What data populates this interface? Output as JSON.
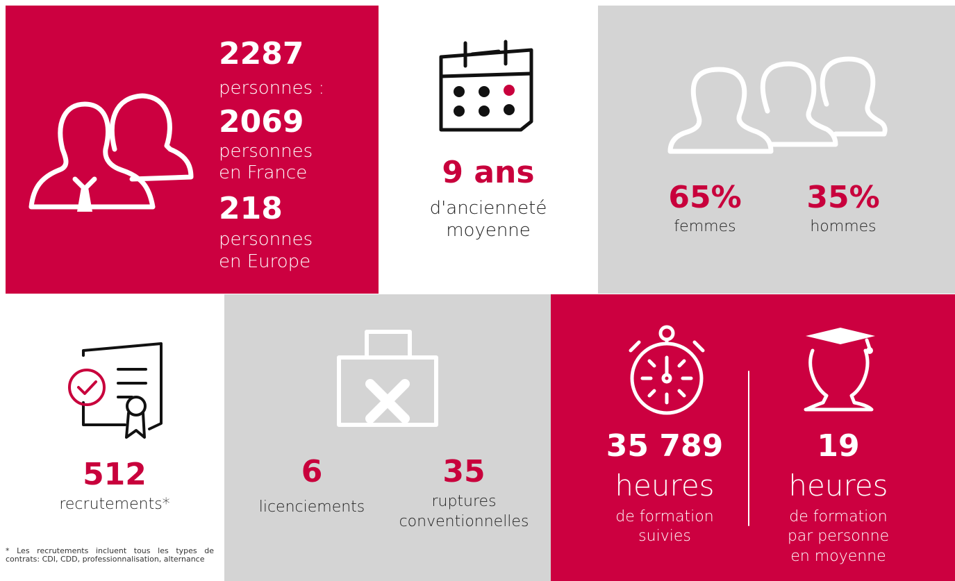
{
  "workforce": {
    "total": "2287",
    "total_label": "personnes :",
    "france": "2069",
    "france_label": [
      "personnes",
      "en France"
    ],
    "europe": "218",
    "europe_label": [
      "personnes",
      "en Europe"
    ]
  },
  "seniority": {
    "value": "9 ans",
    "label": [
      "d'ancienneté",
      "moyenne"
    ]
  },
  "gender": {
    "women": "65%",
    "women_label": "femmes",
    "men": "35%",
    "men_label": "hommes"
  },
  "hiring": {
    "value": "512",
    "label": "recrutements*",
    "footnote": "* Les recrutements incluent tous les types de contrats: CDI, CDD, professionnalisation, alternance"
  },
  "departures": {
    "dismissals": "6",
    "dismissals_label": "licenciements",
    "agreements": "35",
    "agreements_label": [
      "ruptures",
      "conventionnelles"
    ]
  },
  "training": {
    "total": "35 789",
    "total_unit": "heures",
    "total_label": [
      "de formation",
      "suivies"
    ],
    "per_person": "19",
    "per_person_unit": "heures",
    "per_person_label": [
      "de formation",
      "par personne",
      "en moyenne"
    ]
  }
}
